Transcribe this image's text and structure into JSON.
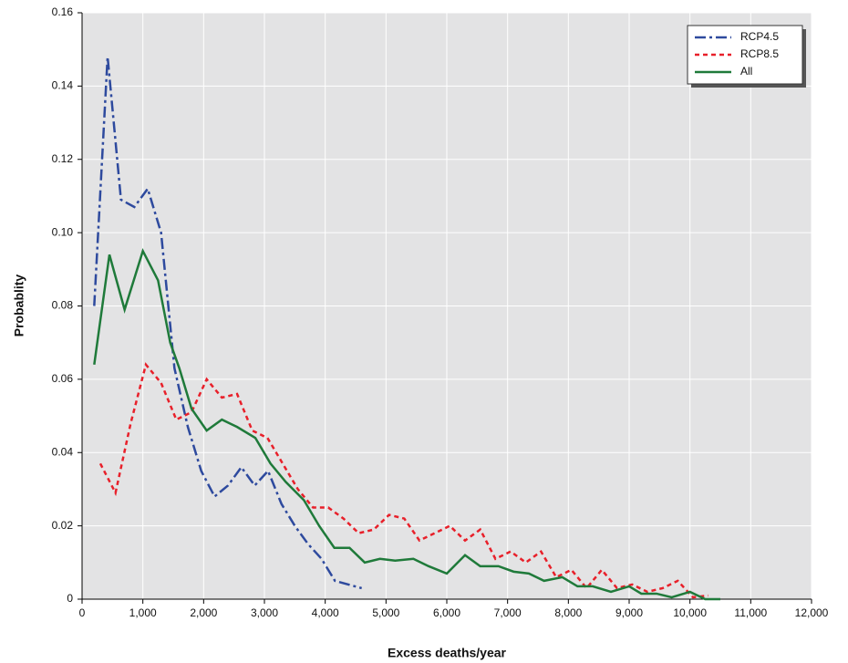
{
  "chart_data": {
    "type": "line",
    "xlabel": "Excess deaths/year",
    "ylabel": "Probablity",
    "xlim": [
      0,
      12000
    ],
    "ylim": [
      0,
      0.16
    ],
    "xticks": [
      0,
      {
        "value": 1000,
        "label": "1,000"
      },
      {
        "value": 2000,
        "label": "2,000"
      },
      {
        "value": 3000,
        "label": "3,000"
      },
      {
        "value": 4000,
        "label": "4,000"
      },
      {
        "value": 5000,
        "label": "5,000"
      },
      {
        "value": 6000,
        "label": "6,000"
      },
      {
        "value": 7000,
        "label": "7,000"
      },
      {
        "value": 8000,
        "label": "8,000"
      },
      {
        "value": 9000,
        "label": "9,000"
      },
      {
        "value": 10000,
        "label": "10,000"
      },
      {
        "value": 11000,
        "label": "11,000"
      },
      {
        "value": 12000,
        "label": "12,000"
      }
    ],
    "yticks": [
      0,
      0.02,
      0.04,
      0.06,
      0.08,
      {
        "value": 0.1,
        "label": "0.10"
      },
      0.12,
      0.14,
      0.16
    ],
    "grid": true,
    "legend": "upper right",
    "series": [
      {
        "name": "RCP4.5",
        "color": "#2e4a9e",
        "dash": "dashdot",
        "x": [
          200,
          420,
          640,
          860,
          1080,
          1300,
          1520,
          1740,
          1960,
          2180,
          2400,
          2620,
          2840,
          3060,
          3280,
          3500,
          3720,
          3940,
          4160,
          4380,
          4600
        ],
        "values": [
          0.08,
          0.148,
          0.109,
          0.107,
          0.112,
          0.1,
          0.063,
          0.047,
          0.035,
          0.028,
          0.031,
          0.036,
          0.031,
          0.035,
          0.026,
          0.02,
          0.015,
          0.011,
          0.005,
          0.004,
          0.003
        ]
      },
      {
        "name": "RCP8.5",
        "color": "#e8202a",
        "dash": "dashed",
        "x": [
          300,
          550,
          800,
          1050,
          1300,
          1550,
          1800,
          2050,
          2300,
          2550,
          2800,
          3050,
          3300,
          3550,
          3800,
          4050,
          4300,
          4550,
          4800,
          5050,
          5300,
          5550,
          5800,
          6050,
          6300,
          6550,
          6800,
          7050,
          7300,
          7550,
          7800,
          8050,
          8300,
          8550,
          8800,
          9050,
          9300,
          9550,
          9800,
          10050,
          10300
        ],
        "values": [
          0.037,
          0.029,
          0.048,
          0.064,
          0.059,
          0.049,
          0.051,
          0.06,
          0.055,
          0.056,
          0.046,
          0.044,
          0.037,
          0.03,
          0.025,
          0.025,
          0.022,
          0.018,
          0.019,
          0.023,
          0.022,
          0.016,
          0.018,
          0.02,
          0.016,
          0.019,
          0.011,
          0.013,
          0.01,
          0.013,
          0.006,
          0.008,
          0.003,
          0.008,
          0.003,
          0.004,
          0.002,
          0.003,
          0.005,
          0.0005,
          0.001
        ]
      },
      {
        "name": "All",
        "color": "#1f7a3a",
        "dash": "solid",
        "x": [
          200,
          450,
          700,
          1000,
          1250,
          1450,
          1600,
          1800,
          2050,
          2300,
          2550,
          2850,
          3100,
          3350,
          3650,
          3900,
          4150,
          4400,
          4650,
          4900,
          5150,
          5450,
          5700,
          6000,
          6300,
          6550,
          6850,
          7100,
          7350,
          7600,
          7900,
          8150,
          8400,
          8700,
          9000,
          9200,
          9450,
          9700,
          10000,
          10250,
          10500
        ],
        "values": [
          0.064,
          0.094,
          0.079,
          0.095,
          0.087,
          0.07,
          0.063,
          0.052,
          0.046,
          0.049,
          0.047,
          0.044,
          0.037,
          0.032,
          0.027,
          0.02,
          0.014,
          0.014,
          0.01,
          0.011,
          0.0105,
          0.011,
          0.009,
          0.007,
          0.012,
          0.009,
          0.009,
          0.0075,
          0.007,
          0.005,
          0.006,
          0.0035,
          0.0035,
          0.002,
          0.0035,
          0.0015,
          0.0015,
          0.0005,
          0.002,
          0,
          0
        ]
      }
    ]
  }
}
